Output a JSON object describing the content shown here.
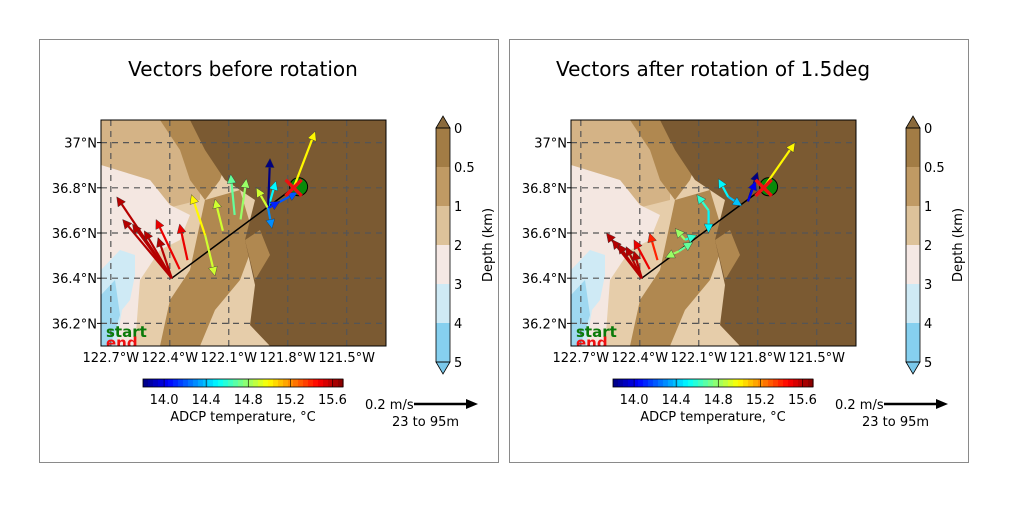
{
  "chart_data": [
    {
      "type": "map-vector",
      "title": "Vectors before rotation",
      "x_ticks": [
        "122.7°W",
        "122.4°W",
        "122.1°W",
        "121.8°W",
        "121.5°W"
      ],
      "y_ticks": [
        "37°N",
        "36.8°N",
        "36.6°N",
        "36.4°N",
        "36.2°N"
      ],
      "xlim": [
        -122.75,
        -121.3
      ],
      "ylim": [
        36.1,
        37.1
      ],
      "depth_colorbar": {
        "label": "Depth (km)",
        "ticks": [
          "0",
          "0.5",
          "1",
          "2",
          "3",
          "4",
          "5"
        ]
      },
      "temperature_colorbar": {
        "label": "ADCP temperature, °C",
        "ticks": [
          "14.0",
          "14.4",
          "14.8",
          "15.2",
          "15.6"
        ],
        "range": [
          13.8,
          15.7
        ]
      },
      "scale": {
        "speed_label": "0.2 m/s",
        "depth_label": "23 to 95m"
      },
      "legend": {
        "start": "start",
        "end": "end"
      },
      "track": {
        "start": [
          -122.39,
          36.4
        ],
        "end": [
          -121.77,
          36.8
        ]
      },
      "vectors": [
        {
          "lon": -122.39,
          "lat": 36.4,
          "dlon": -0.28,
          "dlat": 0.36,
          "t": 15.6
        },
        {
          "lon": -122.39,
          "lat": 36.4,
          "dlon": -0.25,
          "dlat": 0.26,
          "t": 15.6
        },
        {
          "lon": -122.39,
          "lat": 36.4,
          "dlon": -0.2,
          "dlat": 0.24,
          "t": 15.6
        },
        {
          "lon": -122.39,
          "lat": 36.4,
          "dlon": -0.14,
          "dlat": 0.21,
          "t": 15.6
        },
        {
          "lon": -122.39,
          "lat": 36.4,
          "dlon": -0.07,
          "dlat": 0.18,
          "t": 15.6
        },
        {
          "lon": -122.35,
          "lat": 36.44,
          "dlon": -0.12,
          "dlat": 0.22,
          "t": 15.5
        },
        {
          "lon": -122.31,
          "lat": 36.48,
          "dlon": -0.04,
          "dlat": 0.16,
          "t": 15.5
        },
        {
          "lon": -122.22,
          "lat": 36.59,
          "dlon": -0.07,
          "dlat": 0.18,
          "t": 15.0
        },
        {
          "lon": -122.22,
          "lat": 36.59,
          "dlon": 0.05,
          "dlat": -0.18,
          "t": 14.9
        },
        {
          "lon": -122.13,
          "lat": 36.61,
          "dlon": -0.04,
          "dlat": 0.14,
          "t": 14.9
        },
        {
          "lon": -122.07,
          "lat": 36.68,
          "dlon": -0.02,
          "dlat": 0.18,
          "t": 14.7
        },
        {
          "lon": -122.04,
          "lat": 36.66,
          "dlon": 0.03,
          "dlat": 0.18,
          "t": 14.8
        },
        {
          "lon": -121.9,
          "lat": 36.71,
          "dlon": 0.04,
          "dlat": 0.12,
          "t": 14.5
        },
        {
          "lon": -121.9,
          "lat": 36.71,
          "dlon": 0.01,
          "dlat": 0.22,
          "t": 13.8
        },
        {
          "lon": -121.9,
          "lat": 36.71,
          "dlon": -0.06,
          "dlat": 0.09,
          "t": 14.9
        },
        {
          "lon": -121.9,
          "lat": 36.71,
          "dlon": 0.15,
          "dlat": 0.07,
          "t": 14.2
        },
        {
          "lon": -121.9,
          "lat": 36.71,
          "dlon": 0.06,
          "dlat": 0.03,
          "t": 14.1
        },
        {
          "lon": -121.9,
          "lat": 36.71,
          "dlon": 0.02,
          "dlat": -0.09,
          "t": 14.3
        },
        {
          "lon": -121.77,
          "lat": 36.8,
          "dlon": 0.11,
          "dlat": 0.25,
          "t": 15.0
        }
      ]
    },
    {
      "type": "map-vector",
      "title": "Vectors after rotation of 1.5deg",
      "x_ticks": [
        "122.7°W",
        "122.4°W",
        "122.1°W",
        "121.8°W",
        "121.5°W"
      ],
      "y_ticks": [
        "37°N",
        "36.8°N",
        "36.6°N",
        "36.4°N",
        "36.2°N"
      ],
      "xlim": [
        -122.75,
        -121.3
      ],
      "ylim": [
        36.1,
        37.1
      ],
      "depth_colorbar": {
        "label": "Depth (km)",
        "ticks": [
          "0",
          "0.5",
          "1",
          "2",
          "3",
          "4",
          "5"
        ]
      },
      "temperature_colorbar": {
        "label": "ADCP temperature, °C",
        "ticks": [
          "14.0",
          "14.4",
          "14.8",
          "15.2",
          "15.6"
        ],
        "range": [
          13.8,
          15.7
        ]
      },
      "scale": {
        "speed_label": "0.2 m/s",
        "depth_label": "23 to 95m"
      },
      "legend": {
        "start": "start",
        "end": "end"
      },
      "track": {
        "start": [
          -122.39,
          36.4
        ],
        "end": [
          -121.77,
          36.8
        ]
      },
      "vectors": [
        {
          "lon": -122.39,
          "lat": 36.4,
          "dlon": -0.18,
          "dlat": 0.2,
          "t": 15.6
        },
        {
          "lon": -122.39,
          "lat": 36.4,
          "dlon": -0.15,
          "dlat": 0.17,
          "t": 15.6
        },
        {
          "lon": -122.39,
          "lat": 36.4,
          "dlon": -0.12,
          "dlat": 0.15,
          "t": 15.6
        },
        {
          "lon": -122.39,
          "lat": 36.4,
          "dlon": -0.08,
          "dlat": 0.14,
          "t": 15.6
        },
        {
          "lon": -122.39,
          "lat": 36.4,
          "dlon": -0.04,
          "dlat": 0.12,
          "t": 15.6
        },
        {
          "lon": -122.35,
          "lat": 36.44,
          "dlon": -0.08,
          "dlat": 0.13,
          "t": 15.5
        },
        {
          "lon": -122.31,
          "lat": 36.48,
          "dlon": -0.04,
          "dlat": 0.12,
          "t": 15.4
        },
        {
          "lon": -122.2,
          "lat": 36.52,
          "dlon": -0.07,
          "dlat": -0.03,
          "t": 14.8
        },
        {
          "lon": -122.2,
          "lat": 36.52,
          "dlon": 0.07,
          "dlat": 0.04,
          "t": 14.7
        },
        {
          "lon": -122.17,
          "lat": 36.57,
          "dlon": -0.05,
          "dlat": 0.05,
          "t": 14.8
        },
        {
          "lon": -122.17,
          "lat": 36.57,
          "dlon": 0.06,
          "dlat": 0.02,
          "t": 14.6
        },
        {
          "lon": -122.05,
          "lat": 36.7,
          "dlon": -0.06,
          "dlat": 0.07,
          "t": 14.6
        },
        {
          "lon": -122.05,
          "lat": 36.7,
          "dlon": 0.0,
          "dlat": -0.1,
          "t": 14.5
        },
        {
          "lon": -121.95,
          "lat": 36.76,
          "dlon": -0.05,
          "dlat": 0.08,
          "t": 14.5
        },
        {
          "lon": -121.95,
          "lat": 36.76,
          "dlon": 0.07,
          "dlat": -0.04,
          "t": 14.4
        },
        {
          "lon": -121.85,
          "lat": 36.74,
          "dlon": 0.05,
          "dlat": 0.13,
          "t": 13.8
        },
        {
          "lon": -121.85,
          "lat": 36.74,
          "dlon": 0.04,
          "dlat": 0.09,
          "t": 14.0
        },
        {
          "lon": -121.77,
          "lat": 36.8,
          "dlon": 0.16,
          "dlat": 0.2,
          "t": 15.0
        }
      ]
    }
  ]
}
